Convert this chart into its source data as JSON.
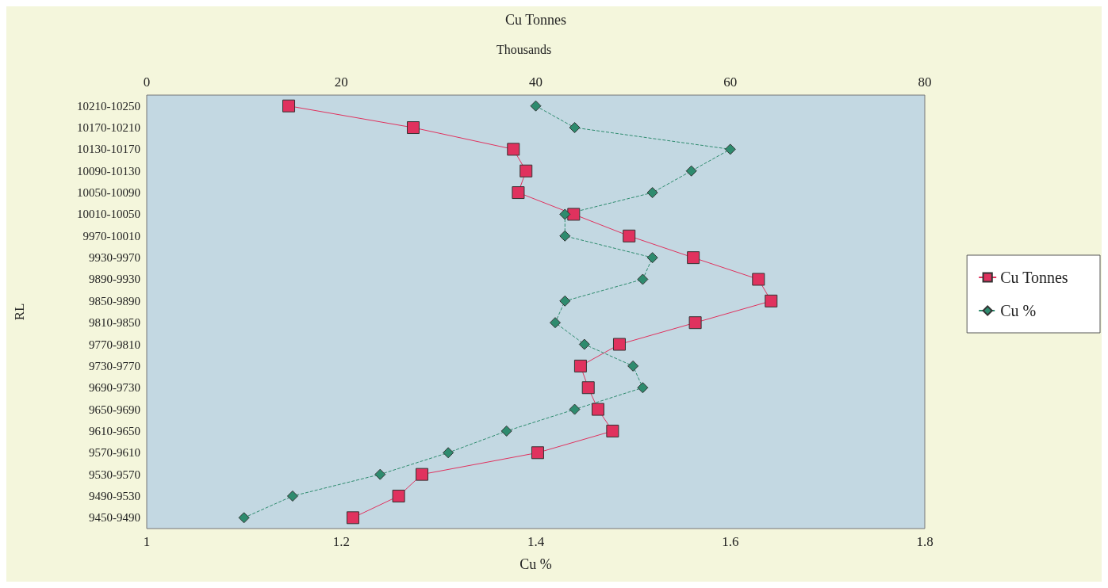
{
  "chart_data": {
    "type": "line",
    "orientation": "horizontal",
    "xlabel": "Cu %",
    "x2label": "Cu Tonnes",
    "ylabel": "RL",
    "annotations": [
      "Thousands"
    ],
    "categories": [
      "10210-10250",
      "10170-10210",
      "10130-10170",
      "10090-10130",
      "10050-10090",
      "10010-10050",
      "9970-10010",
      "9930-9970",
      "9890-9930",
      "9850-9890",
      "9810-9850",
      "9770-9810",
      "9730-9770",
      "9690-9730",
      "9650-9690",
      "9610-9650",
      "9570-9610",
      "9530-9570",
      "9490-9530",
      "9450-9490"
    ],
    "series": [
      {
        "name": "Cu Tonnes",
        "color": "#e0325e",
        "axis": "x2",
        "marker": "square",
        "line_style": "solid",
        "values": [
          14.6,
          27.4,
          37.7,
          39.0,
          38.2,
          43.9,
          49.6,
          56.2,
          62.9,
          64.2,
          56.4,
          48.6,
          44.6,
          45.4,
          46.4,
          47.9,
          40.2,
          28.3,
          25.9,
          21.2
        ]
      },
      {
        "name": "Cu %",
        "color": "#2e8b6e",
        "marker": "diamond",
        "line_style": "dashed",
        "values": [
          1.4,
          1.44,
          1.6,
          1.56,
          1.52,
          1.43,
          1.43,
          1.52,
          1.51,
          1.43,
          1.42,
          1.45,
          1.5,
          1.51,
          1.44,
          1.37,
          1.31,
          1.24,
          1.15,
          1.1
        ]
      }
    ],
    "xlim": [
      1,
      1.8
    ],
    "xticks": [
      1,
      1.2,
      1.4,
      1.6,
      1.8
    ],
    "x2lim": [
      0,
      80
    ],
    "x2ticks": [
      0,
      20,
      40,
      60,
      80
    ],
    "grid": false,
    "legend": "right"
  }
}
